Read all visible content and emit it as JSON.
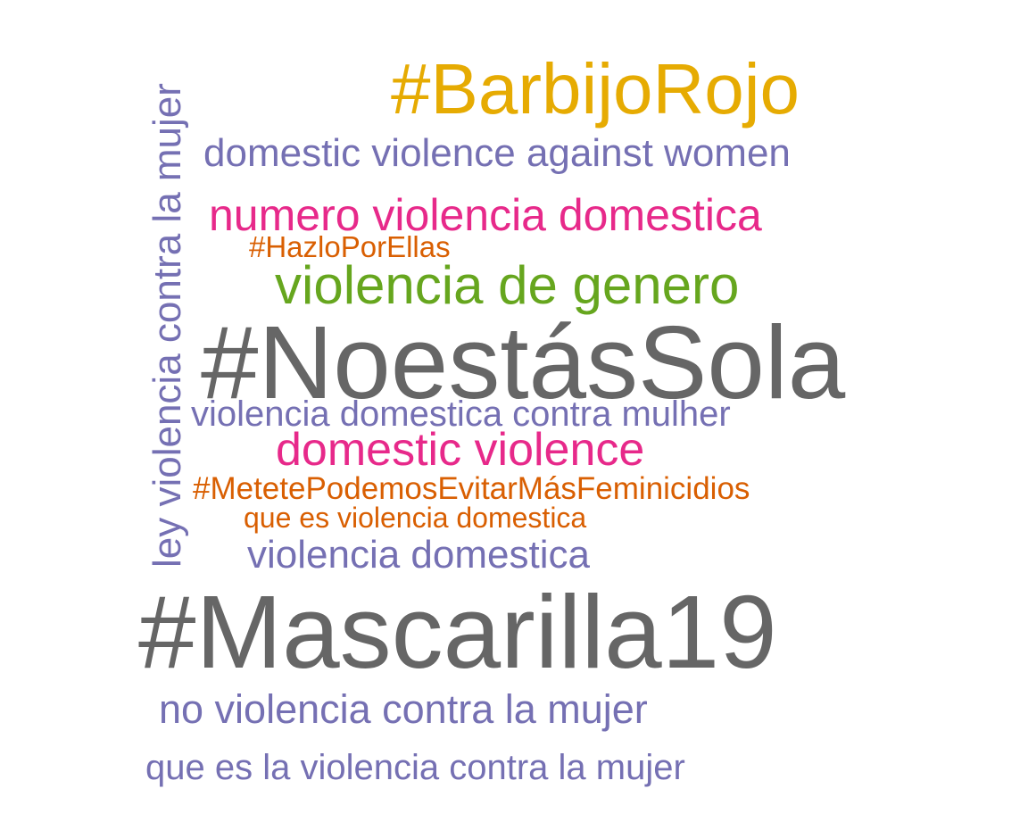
{
  "word_cloud": {
    "words": {
      "barbijo_rojo": "#BarbijoRojo",
      "domestic_violence_against_women": "domestic violence against women",
      "numero_violencia_domestica": "numero violencia domestica",
      "hazlo_por_ellas": "#HazloPorEllas",
      "violencia_de_genero": "violencia de genero",
      "no_estas_sola": "#NoestásSola",
      "violencia_domestica_contra_mulher": "violencia domestica contra mulher",
      "domestic_violence": "domestic violence",
      "metete": "#MetetePodemosEvitarMásFeminicidios",
      "que_es_violencia_domestica": "que es violencia domestica",
      "violencia_domestica": "violencia domestica",
      "mascarilla19": "#Mascarilla19",
      "no_violencia_contra_la_mujer": "no violencia contra la mujer",
      "que_es_la_violencia_contra_la_mujer": "que es la violencia contra la mujer",
      "ley_violencia_contra_la_mujer": "ley violencia contra la mujer"
    },
    "colors": {
      "gray": "#666666",
      "purple": "#7570b3",
      "pink": "#e7298a",
      "green": "#66a61e",
      "orange": "#d95f02",
      "gold": "#e6ab02"
    }
  }
}
